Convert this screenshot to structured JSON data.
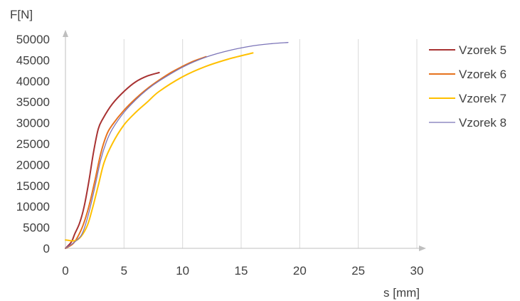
{
  "chart_data": {
    "type": "line",
    "title": "",
    "ylabel": "F[N]",
    "xlabel": "s [mm]",
    "xlim": [
      0,
      30
    ],
    "ylim": [
      0,
      50000
    ],
    "x_ticks": [
      "0",
      "5",
      "10",
      "15",
      "20",
      "25",
      "30"
    ],
    "y_ticks": [
      "0",
      "5000",
      "10000",
      "15000",
      "20000",
      "25000",
      "30000",
      "35000",
      "40000",
      "45000",
      "50000"
    ],
    "grid": "vertical",
    "legend_position": "right",
    "series": [
      {
        "name": "Vzorek 5",
        "color": "#a83232",
        "x": [
          0,
          0.5,
          0.8,
          1.2,
          1.6,
          2.0,
          2.4,
          2.8,
          3.2,
          4.0,
          5.0,
          6.0,
          7.0,
          8.0
        ],
        "y": [
          0,
          1500,
          3500,
          6000,
          10000,
          16000,
          23000,
          28500,
          31000,
          34500,
          37500,
          39800,
          41200,
          42000
        ]
      },
      {
        "name": "Vzorek 6",
        "color": "#e6731e",
        "x": [
          0,
          0.6,
          1.0,
          1.5,
          2.0,
          2.5,
          3.0,
          3.5,
          4.0,
          5.0,
          6.0,
          7.0,
          8.0,
          9.0,
          10.0,
          11.0,
          12.0
        ],
        "y": [
          0,
          1000,
          2500,
          5500,
          10000,
          16000,
          22500,
          27000,
          29500,
          33000,
          35800,
          38200,
          40200,
          42000,
          43500,
          44800,
          45800
        ]
      },
      {
        "name": "Vzorek 7",
        "color": "#ffc000",
        "x": [
          0,
          1.0,
          1.8,
          2.3,
          2.8,
          3.3,
          4.0,
          5.0,
          6.0,
          7.0,
          8.0,
          10.0,
          12.0,
          14.0,
          16.0
        ],
        "y": [
          2000,
          2000,
          5000,
          9500,
          15000,
          20500,
          25000,
          29500,
          32500,
          35000,
          37500,
          41000,
          43500,
          45300,
          46700
        ]
      },
      {
        "name": "Vzorek 8",
        "color": "#7b74b8",
        "x": [
          0,
          1.0,
          1.5,
          2.0,
          2.5,
          3.0,
          3.5,
          4.0,
          5.0,
          6.0,
          7.0,
          8.0,
          10.0,
          12.0,
          14.0,
          16.0,
          17.5,
          19.0
        ],
        "y": [
          0,
          2000,
          4000,
          8500,
          14500,
          21000,
          25500,
          28500,
          32500,
          35500,
          38000,
          40000,
          43300,
          45700,
          47300,
          48400,
          48900,
          49200
        ]
      }
    ]
  }
}
